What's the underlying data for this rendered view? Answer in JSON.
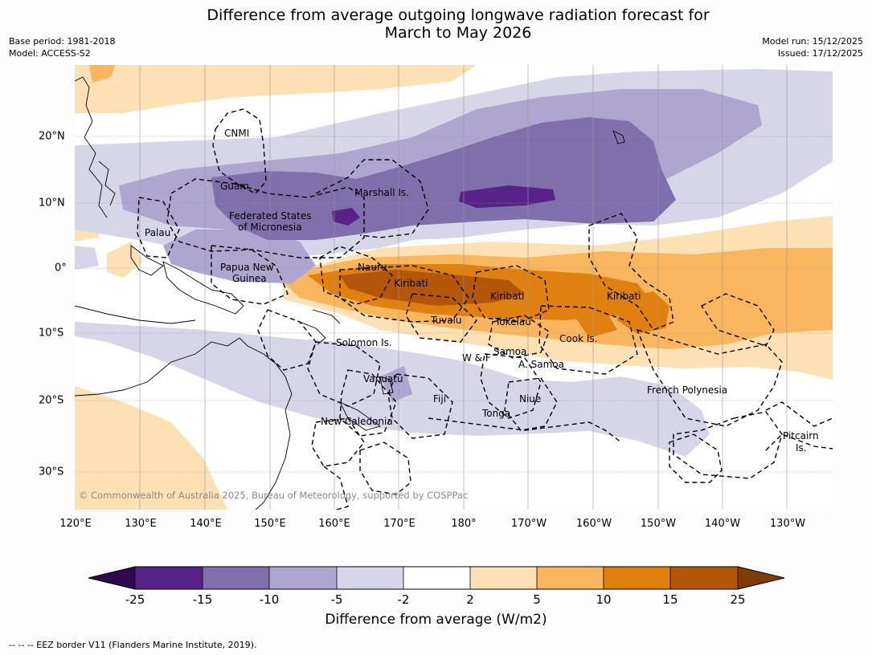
{
  "title_line1": "Difference from average outgoing longwave radiation forecast for",
  "title_line2": "March to May 2026",
  "base_period": "Base period: 1981-2018",
  "model": "Model: ACCESS-S2",
  "model_run": "Model run: 15/12/2025",
  "issued": "Issued: 17/12/2025",
  "copyright": "© Commonwealth of Australia 2025, Bureau of Meteorology, supported by COSPPac",
  "longitudes": [
    "120°E",
    "130°E",
    "140°E",
    "150°E",
    "160°E",
    "170°E",
    "180°",
    "170°W",
    "160°W",
    "150°W",
    "140°W",
    "130°W"
  ],
  "latitudes": [
    "20°N",
    "10°N",
    "0°",
    "10°S",
    "20°S",
    "30°S"
  ],
  "places": {
    "cnmi": "CNMI",
    "guam": "Guam",
    "marshall": "Marshall Is.",
    "fsm1": "Federated States",
    "fsm2": "of Micronesia",
    "palau": "Palau",
    "png1": "Papua New",
    "png2": "Guinea",
    "nauru": "Nauru",
    "kiribati_w": "Kiribati",
    "kiribati_c": "Kiribati",
    "kiribati_e": "Kiribati",
    "tuvalu": "Tuvalu",
    "tokelau": "Tokelau",
    "cook": "Cook Is.",
    "solomon": "Solomon Is.",
    "wf": "W & F",
    "samoa": "Samoa",
    "asamoa": "A. Samoa",
    "vanuatu": "Vanuatu",
    "fiji": "Fiji",
    "niue": "Niue",
    "tonga": "Tonga",
    "frenchpoly": "French Polynesia",
    "newcal": "New Caledonia",
    "pitcairn1": "Pitcairn",
    "pitcairn2": "Is."
  },
  "colorbar": {
    "title": "Difference from average (W/m2)",
    "ticks": [
      "-25",
      "-15",
      "-10",
      "-5",
      "-2",
      "2",
      "5",
      "10",
      "15",
      "25"
    ],
    "colors": {
      "below_min": "#2d0a4e",
      "n25_n15": "#582388",
      "n15_n10": "#7f70ab",
      "n10_n5": "#aea6cf",
      "n5_n2": "#d7d6e9",
      "n2_p2": "#ffffff",
      "p2_p5": "#fde0b3",
      "p5_p10": "#f9b65f",
      "p10_p15": "#e0800f",
      "p15_p25": "#b4560a",
      "above_max": "#7f3b08"
    }
  },
  "footnote": "--  --  -- EEZ border V11 (Flanders Marine Institute, 2019)."
}
